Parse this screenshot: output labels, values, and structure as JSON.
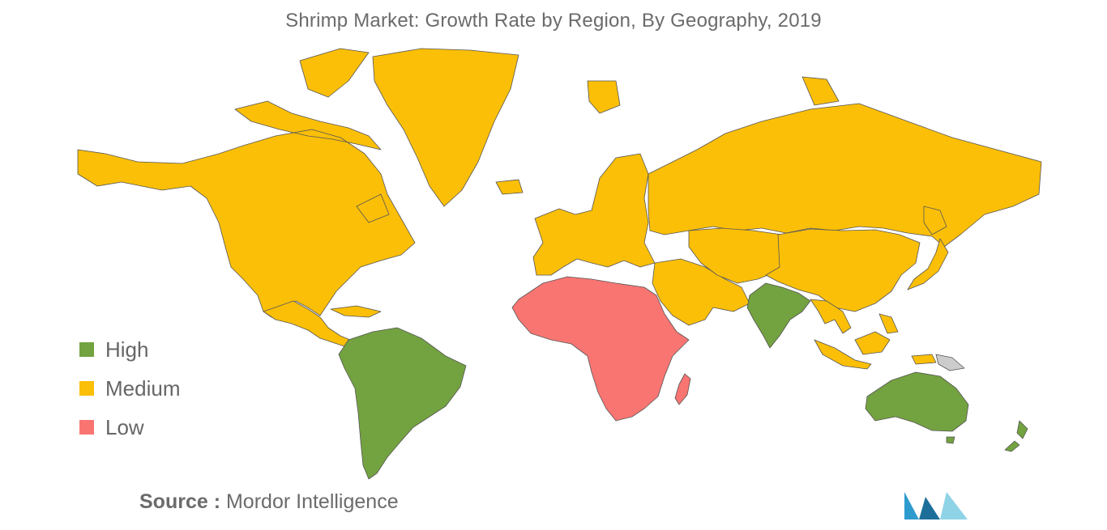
{
  "title": "Shrimp Market: Growth Rate by Region, By Geography, 2019",
  "legend": [
    {
      "key": "high",
      "label": "High",
      "color": "#73a240"
    },
    {
      "key": "medium",
      "label": "Medium",
      "color": "#fbbf08"
    },
    {
      "key": "low",
      "label": "Low",
      "color": "#f97572"
    }
  ],
  "no_data_color": "#cccccc",
  "regions": {
    "north-america": "medium",
    "greenland": "medium",
    "central-america": "medium",
    "south-america": "high",
    "europe": "medium",
    "russia": "medium",
    "middle-east": "medium",
    "central-asia": "medium",
    "china": "medium",
    "india": "high",
    "southeast-asia": "medium",
    "japan": "medium",
    "africa": "low",
    "madagascar": "low",
    "australia": "high",
    "new-zealand": "high",
    "papua-new-guinea": "none"
  },
  "source": {
    "label": "Source :",
    "value": "Mordor Intelligence"
  },
  "logo": {
    "colors": [
      "#2e9bcf",
      "#1d6f9a",
      "#8ed3e6"
    ]
  }
}
